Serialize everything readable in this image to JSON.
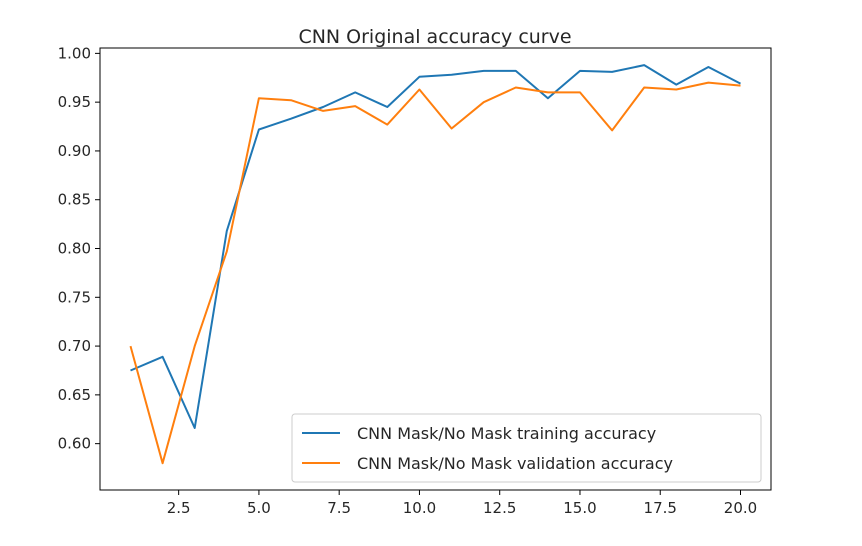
{
  "chart_data": {
    "type": "line",
    "title": "CNN Original accuracy curve",
    "xlabel": "",
    "ylabel": "",
    "xlim": [
      0.05,
      20.95
    ],
    "ylim": [
      0.5525,
      1.0055
    ],
    "x_ticks": [
      2.5,
      5.0,
      7.5,
      10.0,
      12.5,
      15.0,
      17.5,
      20.0
    ],
    "x_tick_labels": [
      "2.5",
      "5.0",
      "7.5",
      "10.0",
      "12.5",
      "15.0",
      "17.5",
      "20.0"
    ],
    "y_ticks": [
      0.6,
      0.65,
      0.7,
      0.75,
      0.8,
      0.85,
      0.9,
      0.95,
      1.0
    ],
    "y_tick_labels": [
      "0.60",
      "0.65",
      "0.70",
      "0.75",
      "0.80",
      "0.85",
      "0.90",
      "0.95",
      "1.00"
    ],
    "grid": false,
    "legend_position": "lower-right",
    "x": [
      1,
      2,
      3,
      4,
      5,
      6,
      7,
      8,
      9,
      10,
      11,
      12,
      13,
      14,
      15,
      16,
      17,
      18,
      19,
      20
    ],
    "series": [
      {
        "name": "CNN Mask/No Mask training accuracy",
        "color": "#1f77b4",
        "values": [
          0.675,
          0.689,
          0.616,
          0.818,
          0.922,
          0.933,
          0.945,
          0.96,
          0.945,
          0.976,
          0.978,
          0.982,
          0.982,
          0.954,
          0.982,
          0.981,
          0.988,
          0.968,
          0.986,
          0.969
        ]
      },
      {
        "name": "CNN Mask/No Mask validation accuracy",
        "color": "#ff7f0e",
        "values": [
          0.7,
          0.58,
          0.7,
          0.797,
          0.954,
          0.952,
          0.941,
          0.946,
          0.927,
          0.963,
          0.923,
          0.95,
          0.965,
          0.96,
          0.96,
          0.921,
          0.965,
          0.963,
          0.97,
          0.967
        ]
      }
    ]
  }
}
